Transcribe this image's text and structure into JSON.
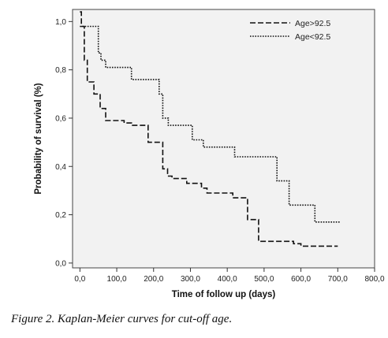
{
  "chart_data": {
    "type": "line",
    "subtype": "step",
    "xlabel": "Time of follow up (days)",
    "ylabel": "Probability of survival (%)",
    "xlim": [
      -20,
      800
    ],
    "ylim": [
      -0.02,
      1.05
    ],
    "x_ticks": [
      0,
      100,
      200,
      300,
      400,
      500,
      600,
      700,
      800
    ],
    "x_tick_labels": [
      "0,0",
      "100,0",
      "200,0",
      "300,0",
      "400,0",
      "500,0",
      "600,0",
      "700,0",
      "800,0"
    ],
    "y_ticks": [
      0,
      0.2,
      0.4,
      0.6,
      0.8,
      1.0
    ],
    "y_tick_labels": [
      "0,0",
      "0,2",
      "0,4",
      "0,6",
      "0,8",
      "1,0"
    ],
    "background": "#f2f2f2",
    "legend_position": "top-right",
    "series": [
      {
        "name": "Age>92.5",
        "style": "dashed",
        "color": "#111111",
        "points": [
          [
            0,
            1.04
          ],
          [
            4,
            1.04
          ],
          [
            4,
            0.98
          ],
          [
            12,
            0.98
          ],
          [
            12,
            0.84
          ],
          [
            20,
            0.84
          ],
          [
            20,
            0.75
          ],
          [
            38,
            0.75
          ],
          [
            38,
            0.7
          ],
          [
            55,
            0.7
          ],
          [
            55,
            0.64
          ],
          [
            70,
            0.64
          ],
          [
            70,
            0.59
          ],
          [
            120,
            0.59
          ],
          [
            120,
            0.58
          ],
          [
            140,
            0.58
          ],
          [
            140,
            0.57
          ],
          [
            185,
            0.57
          ],
          [
            185,
            0.5
          ],
          [
            225,
            0.5
          ],
          [
            225,
            0.39
          ],
          [
            238,
            0.39
          ],
          [
            238,
            0.36
          ],
          [
            250,
            0.36
          ],
          [
            250,
            0.35
          ],
          [
            290,
            0.35
          ],
          [
            290,
            0.33
          ],
          [
            330,
            0.33
          ],
          [
            330,
            0.31
          ],
          [
            345,
            0.31
          ],
          [
            345,
            0.29
          ],
          [
            415,
            0.29
          ],
          [
            415,
            0.27
          ],
          [
            455,
            0.27
          ],
          [
            455,
            0.18
          ],
          [
            485,
            0.18
          ],
          [
            485,
            0.09
          ],
          [
            580,
            0.09
          ],
          [
            580,
            0.08
          ],
          [
            600,
            0.08
          ],
          [
            600,
            0.07
          ],
          [
            700,
            0.07
          ]
        ]
      },
      {
        "name": "Age<92.5",
        "style": "dotted",
        "color": "#111111",
        "points": [
          [
            0,
            0.98
          ],
          [
            50,
            0.98
          ],
          [
            50,
            0.87
          ],
          [
            57,
            0.87
          ],
          [
            57,
            0.84
          ],
          [
            70,
            0.84
          ],
          [
            70,
            0.81
          ],
          [
            140,
            0.81
          ],
          [
            140,
            0.76
          ],
          [
            215,
            0.76
          ],
          [
            215,
            0.7
          ],
          [
            225,
            0.7
          ],
          [
            225,
            0.6
          ],
          [
            240,
            0.6
          ],
          [
            240,
            0.57
          ],
          [
            305,
            0.57
          ],
          [
            305,
            0.51
          ],
          [
            335,
            0.51
          ],
          [
            335,
            0.48
          ],
          [
            420,
            0.48
          ],
          [
            420,
            0.44
          ],
          [
            535,
            0.44
          ],
          [
            535,
            0.34
          ],
          [
            568,
            0.34
          ],
          [
            568,
            0.24
          ],
          [
            638,
            0.24
          ],
          [
            638,
            0.17
          ],
          [
            705,
            0.17
          ]
        ]
      }
    ]
  },
  "caption": "Figure 2. Kaplan-Meier curves for cut-off age."
}
